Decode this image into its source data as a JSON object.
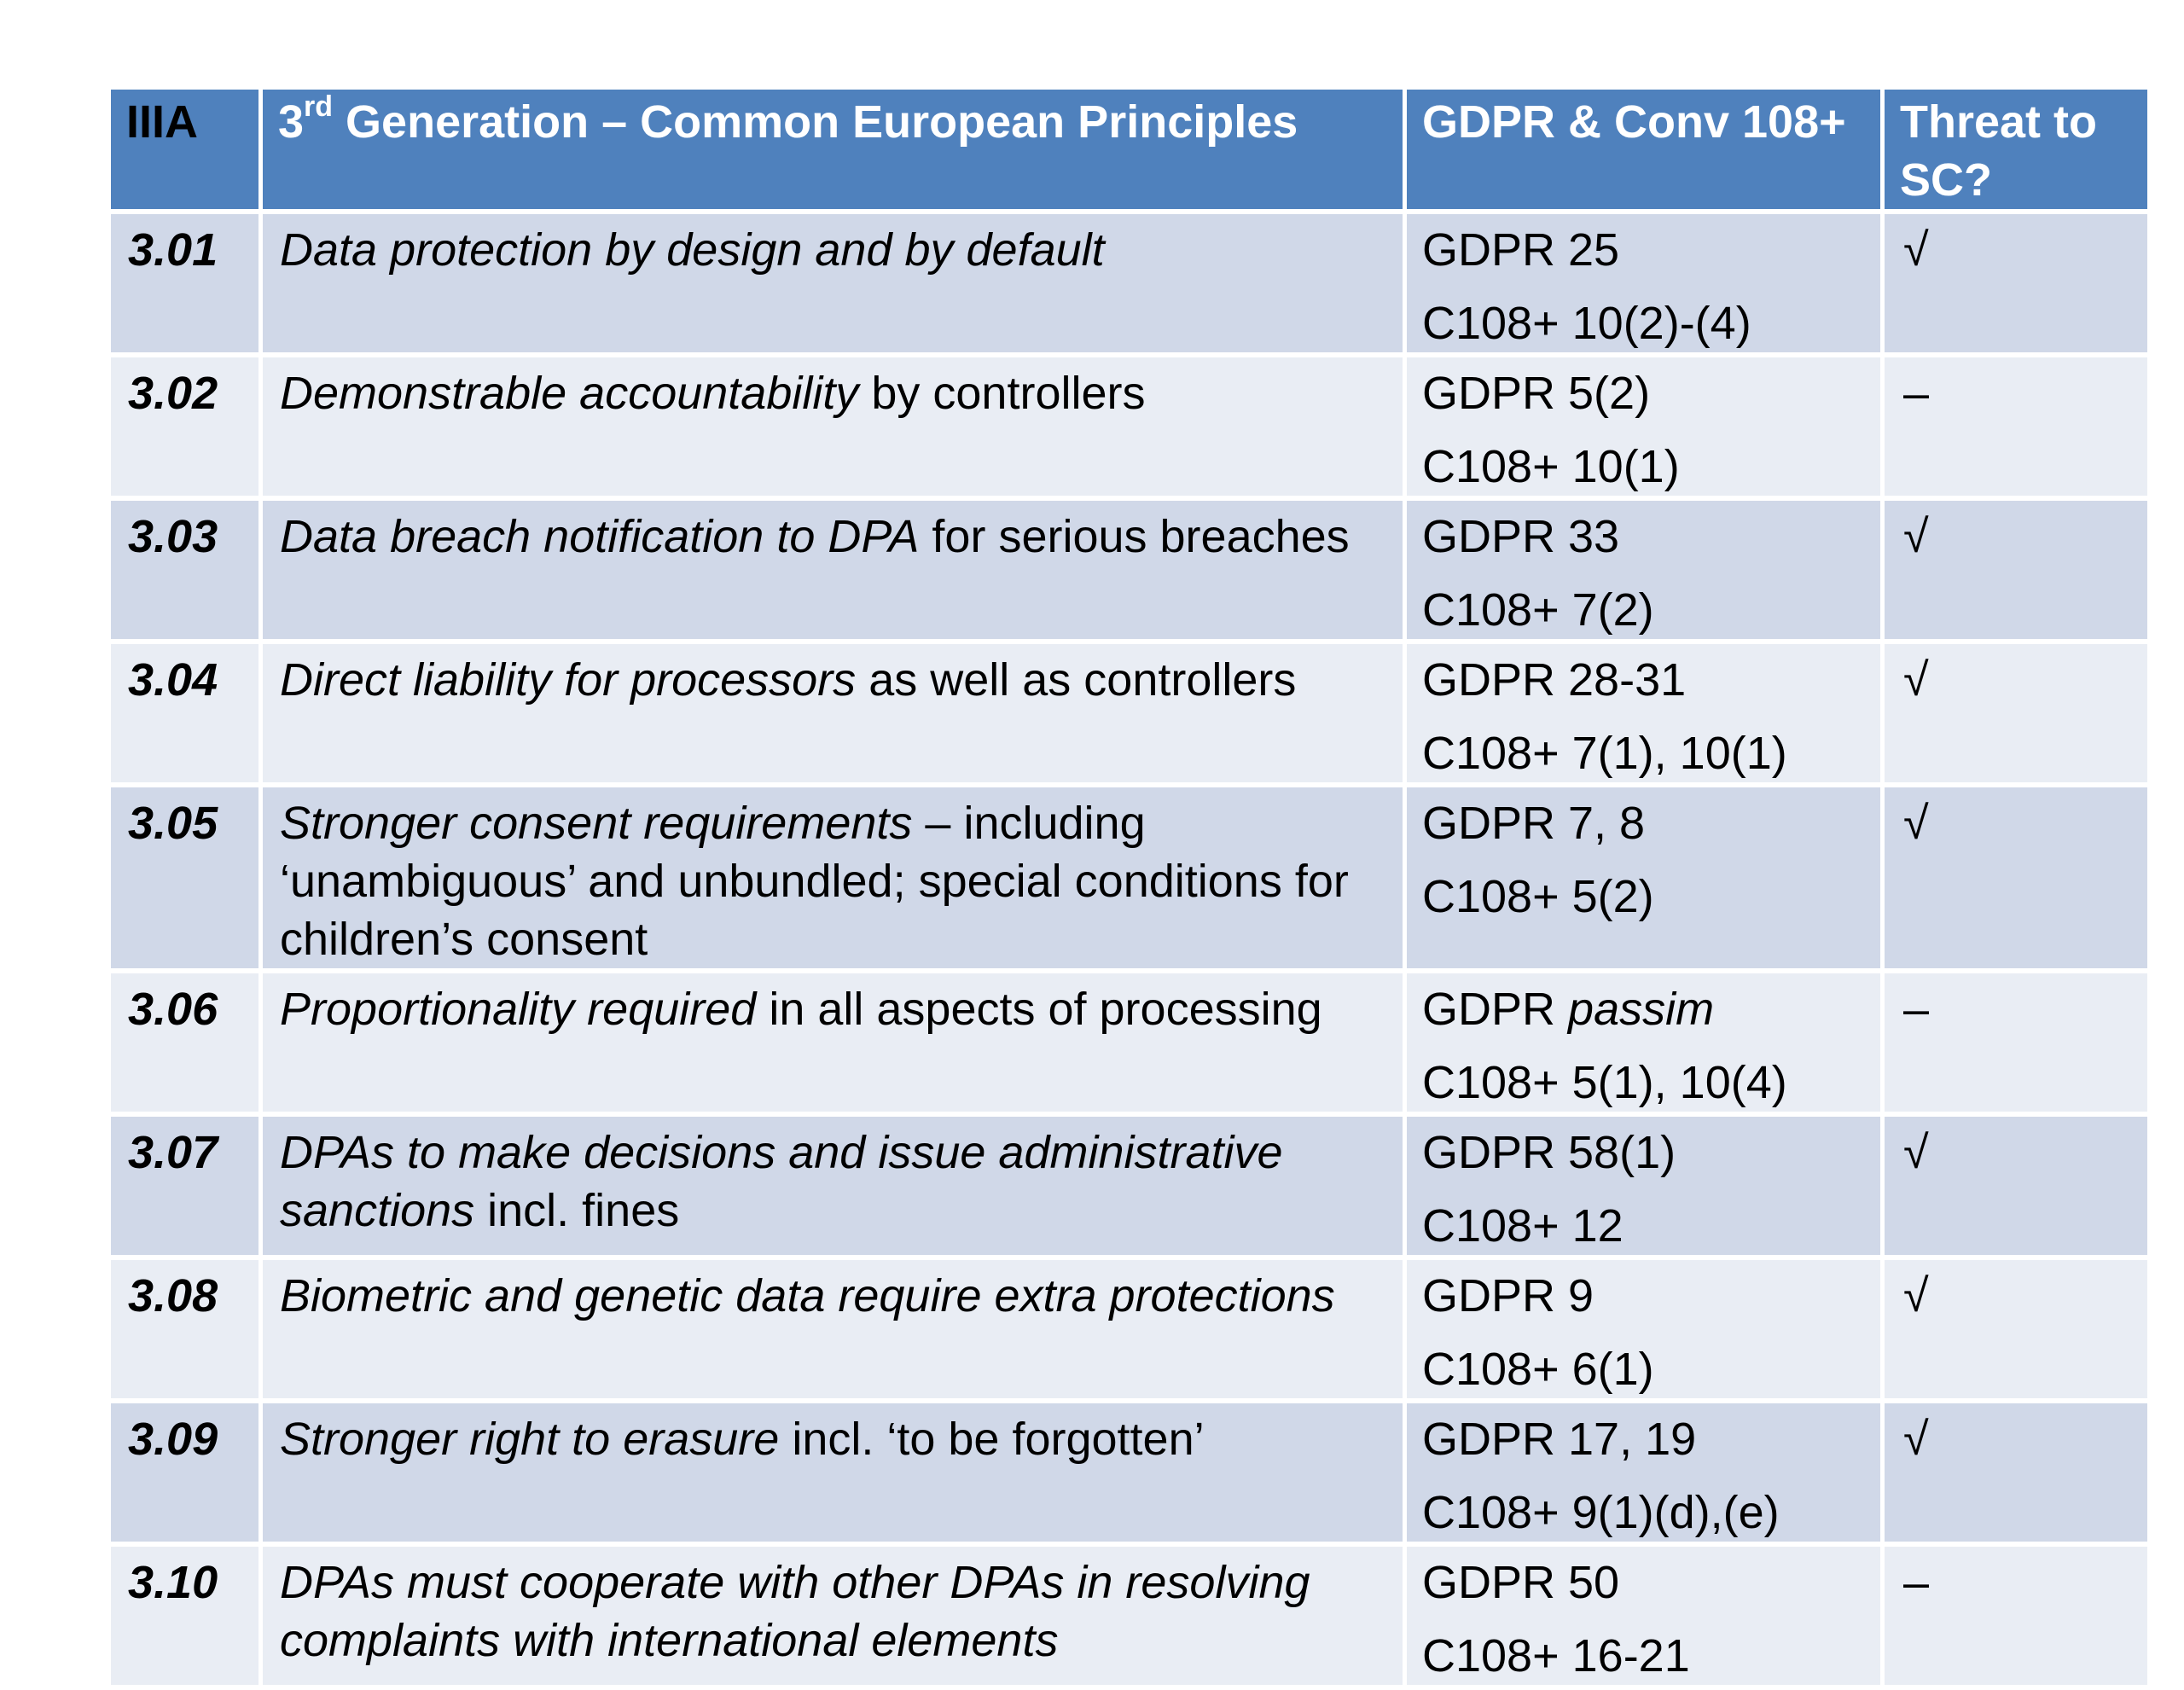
{
  "table": {
    "headers": {
      "num": "IIIA",
      "principle_prefix": "3",
      "principle_sup": "rd",
      "principle_suffix": " Generation – Common European Principles",
      "refs": "GDPR & Conv 108+",
      "threat": "Threat to SC?"
    },
    "rows": [
      {
        "num": "3.01",
        "principle_italic": "Data protection by design and by default",
        "principle_plain": "",
        "gdpr": "GDPR 25",
        "gdpr_italic": "",
        "c108": "C108+ 10(2)-(4)",
        "threat": "√"
      },
      {
        "num": "3.02",
        "principle_italic": "Demonstrable accountability",
        "principle_plain": " by controllers",
        "gdpr": "GDPR 5(2)",
        "gdpr_italic": "",
        "c108": "C108+ 10(1)",
        "threat": "–"
      },
      {
        "num": "3.03",
        "principle_italic": "Data breach notification to DPA",
        "principle_plain": " for serious breaches",
        "gdpr": "GDPR 33",
        "gdpr_italic": "",
        "c108": "C108+ 7(2)",
        "threat": "√"
      },
      {
        "num": "3.04",
        "principle_italic": "Direct liability for processors",
        "principle_plain": " as well as controllers",
        "gdpr": "GDPR 28-31",
        "gdpr_italic": "",
        "c108": "C108+ 7(1), 10(1)",
        "threat": "√"
      },
      {
        "num": "3.05",
        "principle_italic": "Stronger consent requirements",
        "principle_plain": " – including ‘unambiguous’ and unbundled; special conditions for children’s consent",
        "gdpr": "GDPR 7, 8",
        "gdpr_italic": "",
        "c108": "C108+ 5(2)",
        "threat": "√"
      },
      {
        "num": "3.06",
        "principle_italic": "Proportionality required",
        "principle_plain": " in all aspects of processing",
        "gdpr": "GDPR ",
        "gdpr_italic": "passim",
        "c108": "C108+ 5(1), 10(4)",
        "threat": "–"
      },
      {
        "num": "3.07",
        "principle_italic": "DPAs to make decisions and issue administrative sanctions",
        "principle_plain": " incl. fines",
        "gdpr": "GDPR 58(1)",
        "gdpr_italic": "",
        "c108": "C108+ 12",
        "threat": "√"
      },
      {
        "num": "3.08",
        "principle_italic": "Biometric and genetic data require extra protections",
        "principle_plain": "",
        "gdpr": "GDPR 9",
        "gdpr_italic": "",
        "c108": "C108+ 6(1)",
        "threat": "√"
      },
      {
        "num": "3.09",
        "principle_italic": "Stronger right to erasure",
        "principle_plain": " incl. ‘to be forgotten’",
        "gdpr": "GDPR 17, 19",
        "gdpr_italic": "",
        "c108": "C108+ 9(1)(d),(e)",
        "threat": "√"
      },
      {
        "num": "3.10",
        "principle_italic": "DPAs must cooperate with other DPAs in resolving complaints with international elements",
        "principle_plain": "",
        "gdpr": "GDPR 50",
        "gdpr_italic": "",
        "c108": "C108+ 16-21",
        "threat": "–"
      }
    ]
  },
  "colors": {
    "header_bg": "#4f81bd",
    "row_odd_bg": "#d0d8e8",
    "row_even_bg": "#e9edf4"
  }
}
